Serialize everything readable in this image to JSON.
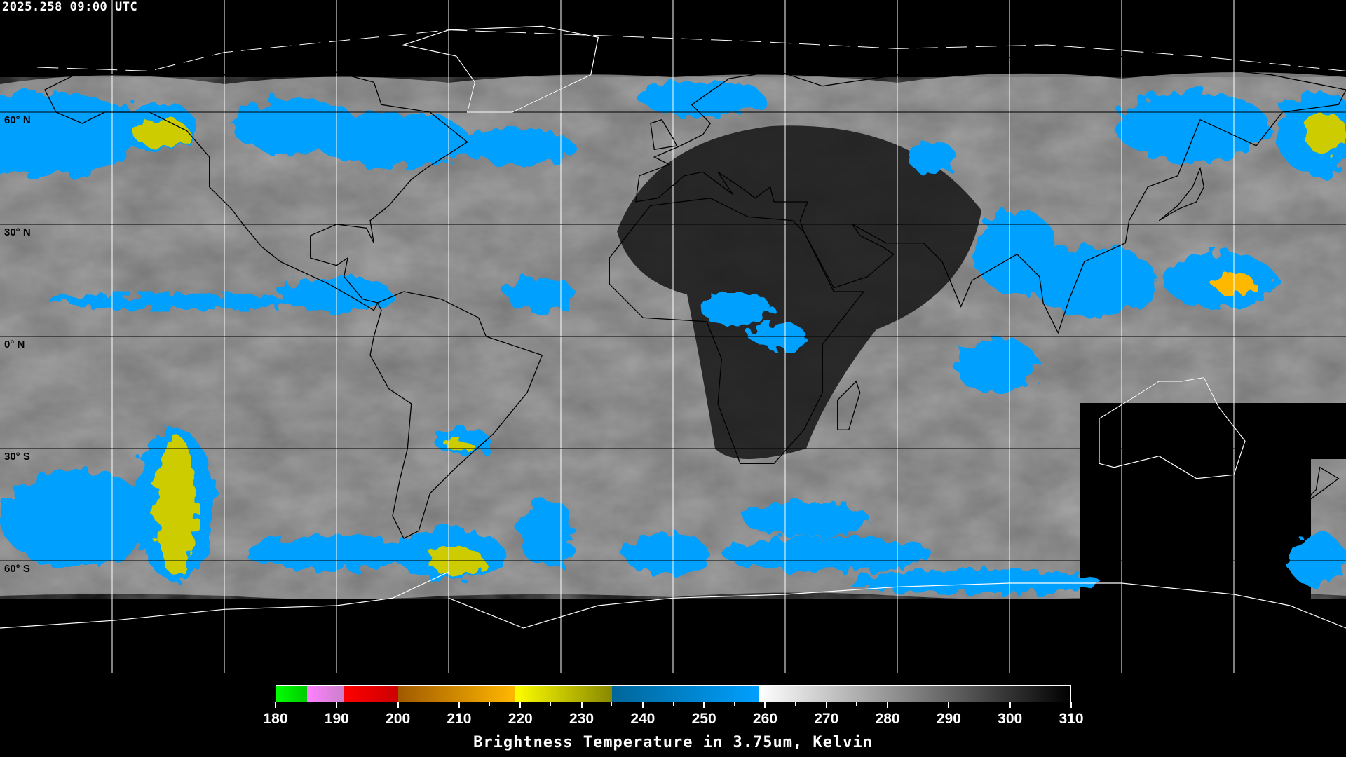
{
  "timestamp": "2025.258 09:00 UTC",
  "map": {
    "projection": "equirectangular",
    "lon_range": [
      -180,
      180
    ],
    "lat_range": [
      -90,
      90
    ],
    "grid_spacing_deg": 30,
    "grid_color": "#ffffff",
    "coastline_color_land": "#ffffff",
    "coastline_color_cloud": "#000000",
    "lat_labels": [
      {
        "lat": 60,
        "text": "60° N"
      },
      {
        "lat": 30,
        "text": "30° N"
      },
      {
        "lat": 0,
        "text": "0° N"
      },
      {
        "lat": -30,
        "text": "30° S"
      },
      {
        "lat": -60,
        "text": "60° S"
      }
    ]
  },
  "colorbar": {
    "title": "Brightness Temperature in 3.75um, Kelvin",
    "min": 180,
    "max": 310,
    "tick_labels": [
      "180",
      "190",
      "200",
      "210",
      "220",
      "230",
      "240",
      "250",
      "260",
      "270",
      "280",
      "290",
      "300",
      "310"
    ],
    "segments": [
      {
        "from": 180,
        "to": 185,
        "c1": "#00ff00",
        "c2": "#00cc00"
      },
      {
        "from": 185,
        "to": 191,
        "c1": "#ff80ff",
        "c2": "#cc80cc"
      },
      {
        "from": 191,
        "to": 200,
        "c1": "#ff0000",
        "c2": "#cc0000"
      },
      {
        "from": 200,
        "to": 219,
        "c1": "#a05a00",
        "c2": "#ffb800"
      },
      {
        "from": 219,
        "to": 235,
        "c1": "#ffff00",
        "c2": "#888800"
      },
      {
        "from": 235,
        "to": 259,
        "c1": "#006699",
        "c2": "#00a0ff"
      },
      {
        "from": 259,
        "to": 310,
        "c1": "#ffffff",
        "c2": "#000000"
      }
    ]
  }
}
